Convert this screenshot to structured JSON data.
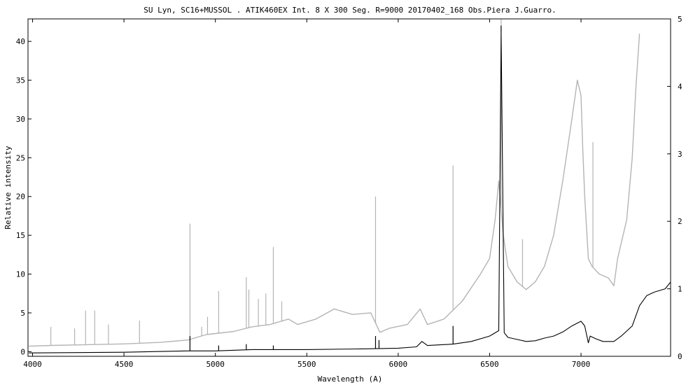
{
  "chart_data": {
    "type": "line",
    "title": "SU Lyn,  SC16+MUSSOL . ATIK460EX  Int. 8 X 300 Seg.  R=9000   20170402_168  Obs.Piera  J.Guarro.",
    "xlabel": "Wavelength (A)",
    "ylabel": "Relative intensity",
    "xlim": [
      3975,
      7490
    ],
    "ylim_left": [
      -0.6,
      42.9
    ],
    "ylim_right": [
      0,
      5
    ],
    "x_ticks": [
      "4000",
      "4500",
      "5000",
      "5500",
      "6000",
      "6500",
      "7000"
    ],
    "y_ticks_left": [
      "0",
      "5",
      "10",
      "15",
      "20",
      "25",
      "30",
      "35",
      "40"
    ],
    "y_ticks_right": [
      "0",
      "1",
      "2",
      "3",
      "4",
      "5"
    ],
    "grid": false,
    "legend": "none",
    "series": [
      {
        "axis": "left",
        "color": "#b4b4b4",
        "x": [
          3980,
          4100,
          4300,
          4500,
          4700,
          4850,
          4950,
          5100,
          5200,
          5300,
          5400,
          5450,
          5550,
          5650,
          5750,
          5850,
          5900,
          5950,
          6050,
          6120,
          6160,
          6250,
          6350,
          6450,
          6500,
          6530,
          6550,
          6575,
          6600,
          6650,
          6700,
          6750,
          6800,
          6850,
          6900,
          6950,
          6980,
          7000,
          7010,
          7020,
          7040,
          7060,
          7100,
          7150,
          7180,
          7200,
          7250,
          7280,
          7300,
          7320
        ],
        "values": [
          0.7,
          0.8,
          0.9,
          1.0,
          1.2,
          1.5,
          2.2,
          2.6,
          3.2,
          3.5,
          4.2,
          3.5,
          4.2,
          5.5,
          4.8,
          5.0,
          2.5,
          3.0,
          3.5,
          5.5,
          3.5,
          4.2,
          6.5,
          10.0,
          12.0,
          17.0,
          22.0,
          15.0,
          11.0,
          9.0,
          8.0,
          9.0,
          11.0,
          15.0,
          22.0,
          30.0,
          35.0,
          33.0,
          26.0,
          20.0,
          12.0,
          11.0,
          10.0,
          9.5,
          8.5,
          12.0,
          17.0,
          25.0,
          34.0,
          41.0
        ],
        "lines": [
          {
            "x": 4100,
            "top": 3.2
          },
          {
            "x": 4230,
            "top": 3.0
          },
          {
            "x": 4290,
            "top": 5.3
          },
          {
            "x": 4340,
            "top": 5.3
          },
          {
            "x": 4415,
            "top": 3.5
          },
          {
            "x": 4585,
            "top": 4.0
          },
          {
            "x": 4861,
            "top": 16.5
          },
          {
            "x": 4925,
            "top": 3.2
          },
          {
            "x": 4957,
            "top": 4.5
          },
          {
            "x": 5018,
            "top": 7.8
          },
          {
            "x": 5169,
            "top": 9.6
          },
          {
            "x": 5183,
            "top": 8.0
          },
          {
            "x": 5235,
            "top": 6.8
          },
          {
            "x": 5276,
            "top": 7.5
          },
          {
            "x": 5317,
            "top": 13.5
          },
          {
            "x": 5363,
            "top": 6.5
          },
          {
            "x": 5876,
            "top": 20.0
          },
          {
            "x": 6300,
            "top": 24.0
          },
          {
            "x": 6563,
            "top": 43.0
          },
          {
            "x": 6680,
            "top": 14.5
          },
          {
            "x": 7065,
            "top": 27.0
          }
        ]
      },
      {
        "axis": "right",
        "color": "#000000",
        "x": [
          3980,
          4500,
          4850,
          5000,
          5200,
          5500,
          5800,
          6000,
          6100,
          6130,
          6160,
          6300,
          6400,
          6500,
          6550,
          6563,
          6580,
          6600,
          6650,
          6700,
          6750,
          6800,
          6850,
          6900,
          6950,
          7000,
          7020,
          7040,
          7050,
          7080,
          7120,
          7180,
          7220,
          7280,
          7320,
          7360,
          7400,
          7460,
          7490
        ],
        "values": [
          0.05,
          0.06,
          0.08,
          0.08,
          0.1,
          0.1,
          0.11,
          0.12,
          0.14,
          0.22,
          0.16,
          0.18,
          0.22,
          0.3,
          0.38,
          4.8,
          0.35,
          0.28,
          0.25,
          0.22,
          0.23,
          0.27,
          0.3,
          0.36,
          0.45,
          0.52,
          0.45,
          0.2,
          0.3,
          0.26,
          0.22,
          0.22,
          0.3,
          0.45,
          0.75,
          0.9,
          0.95,
          1.0,
          1.1
        ],
        "lines": [
          {
            "x": 4861,
            "top": 0.3
          },
          {
            "x": 5018,
            "top": 0.16
          },
          {
            "x": 5169,
            "top": 0.18
          },
          {
            "x": 5317,
            "top": 0.16
          },
          {
            "x": 5876,
            "top": 0.3
          },
          {
            "x": 5895,
            "top": 0.24
          },
          {
            "x": 6300,
            "top": 0.45
          },
          {
            "x": 6563,
            "top": 4.9
          }
        ]
      }
    ]
  }
}
